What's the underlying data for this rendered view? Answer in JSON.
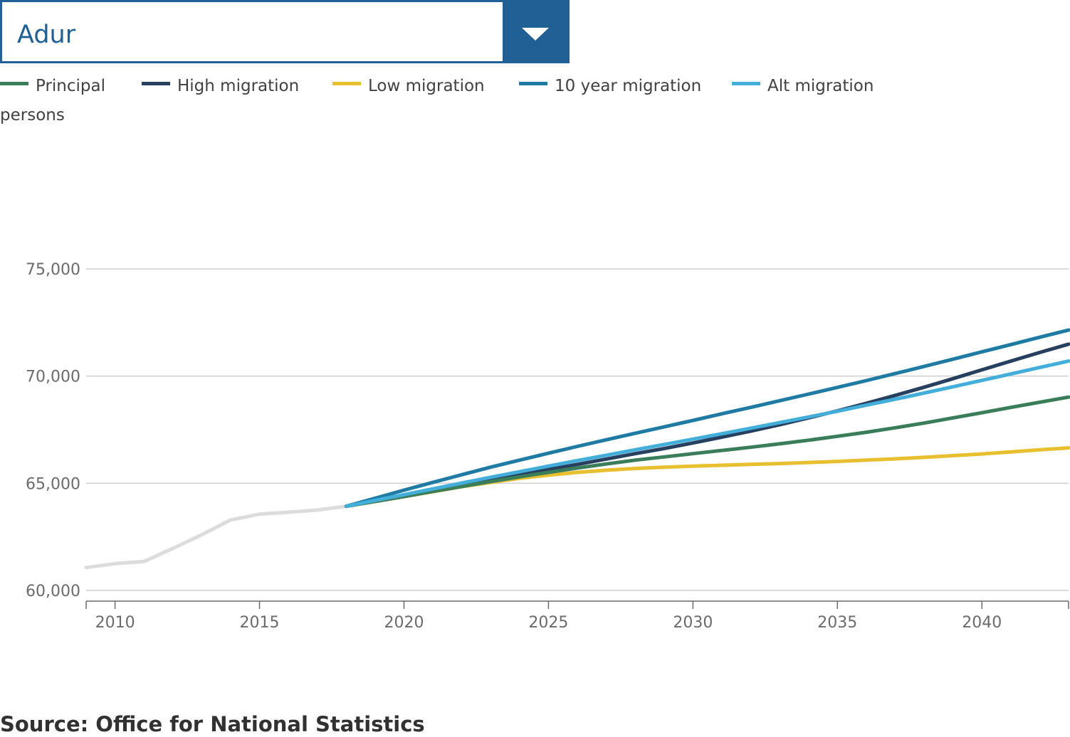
{
  "dropdown": {
    "selected": "Adur"
  },
  "legend": [
    {
      "label": "Principal",
      "color": "#3a7d5a"
    },
    {
      "label": "High migration",
      "color": "#27405f"
    },
    {
      "label": "Low migration",
      "color": "#e8bf2f"
    },
    {
      "label": "10 year migration",
      "color": "#1f7ba3"
    },
    {
      "label": "Alt migration",
      "color": "#44aedb"
    }
  ],
  "unit_label": "persons",
  "source": "Source: Office for National Statistics",
  "chart_data": {
    "type": "line",
    "ylabel": "persons",
    "xlim": [
      2009,
      2043
    ],
    "ylim": [
      60000,
      75000
    ],
    "y_ticks": [
      60000,
      65000,
      70000,
      75000
    ],
    "y_tick_labels": [
      "60,000",
      "65,000",
      "70,000",
      "75,000"
    ],
    "x_ticks": [
      2010,
      2015,
      2020,
      2025,
      2030,
      2035,
      2040
    ],
    "x_tick_labels": [
      "2010",
      "2015",
      "2020",
      "2025",
      "2030",
      "2035",
      "2040"
    ],
    "grid": true,
    "legend_position": "top-left",
    "series": [
      {
        "name": "",
        "color": "#dcdcdc",
        "x": [
          2009,
          2010,
          2011,
          2012,
          2013,
          2014,
          2015,
          2016,
          2017,
          2018
        ],
        "values": [
          61070,
          61250,
          61350,
          61960,
          62600,
          63290,
          63560,
          63650,
          63750,
          63930
        ]
      },
      {
        "name": "Principal",
        "color": "#3a7d5a",
        "x": [
          2018,
          2019,
          2020,
          2021,
          2022,
          2023,
          2024,
          2025,
          2026,
          2027,
          2028,
          2029,
          2030,
          2031,
          2032,
          2033,
          2034,
          2035,
          2036,
          2037,
          2038,
          2039,
          2040,
          2041,
          2042,
          2043
        ],
        "values": [
          63930,
          64150,
          64380,
          64620,
          64850,
          65080,
          65300,
          65510,
          65710,
          65900,
          66080,
          66230,
          66380,
          66530,
          66680,
          66840,
          67010,
          67190,
          67380,
          67590,
          67810,
          68050,
          68290,
          68540,
          68780,
          69020
        ]
      },
      {
        "name": "High migration",
        "color": "#27405f",
        "x": [
          2018,
          2019,
          2020,
          2021,
          2022,
          2023,
          2024,
          2025,
          2026,
          2027,
          2028,
          2029,
          2030,
          2031,
          2032,
          2033,
          2034,
          2035,
          2036,
          2037,
          2038,
          2039,
          2040,
          2041,
          2042,
          2043
        ],
        "values": [
          63930,
          64170,
          64420,
          64660,
          64900,
          65150,
          65390,
          65640,
          65880,
          66130,
          66380,
          66620,
          66880,
          67150,
          67430,
          67730,
          68050,
          68380,
          68730,
          69100,
          69480,
          69880,
          70290,
          70700,
          71100,
          71490
        ]
      },
      {
        "name": "Low migration",
        "color": "#e8bf2f",
        "x": [
          2018,
          2019,
          2020,
          2021,
          2022,
          2023,
          2024,
          2025,
          2026,
          2027,
          2028,
          2029,
          2030,
          2031,
          2032,
          2033,
          2034,
          2035,
          2036,
          2037,
          2038,
          2039,
          2040,
          2041,
          2042,
          2043
        ],
        "values": [
          63930,
          64150,
          64380,
          64610,
          64840,
          65040,
          65230,
          65380,
          65510,
          65610,
          65690,
          65750,
          65800,
          65840,
          65880,
          65920,
          65970,
          66020,
          66080,
          66140,
          66210,
          66290,
          66370,
          66460,
          66560,
          66650
        ]
      },
      {
        "name": "10 year migration",
        "color": "#1f7ba3",
        "x": [
          2018,
          2019,
          2020,
          2021,
          2022,
          2023,
          2024,
          2025,
          2026,
          2027,
          2028,
          2029,
          2030,
          2031,
          2032,
          2033,
          2034,
          2035,
          2036,
          2037,
          2038,
          2039,
          2040,
          2041,
          2042,
          2043
        ],
        "values": [
          63930,
          64300,
          64680,
          65040,
          65400,
          65750,
          66080,
          66400,
          66720,
          67030,
          67330,
          67630,
          67930,
          68240,
          68540,
          68850,
          69160,
          69470,
          69790,
          70120,
          70450,
          70790,
          71130,
          71470,
          71810,
          72150
        ]
      },
      {
        "name": "Alt migration",
        "color": "#44aedb",
        "x": [
          2018,
          2019,
          2020,
          2021,
          2022,
          2023,
          2024,
          2025,
          2026,
          2027,
          2028,
          2029,
          2030,
          2031,
          2032,
          2033,
          2034,
          2035,
          2036,
          2037,
          2038,
          2039,
          2040,
          2041,
          2042,
          2043
        ],
        "values": [
          63930,
          64200,
          64470,
          64740,
          65010,
          65280,
          65540,
          65800,
          66060,
          66310,
          66560,
          66810,
          67060,
          67310,
          67570,
          67830,
          68090,
          68360,
          68640,
          68920,
          69210,
          69500,
          69800,
          70100,
          70400,
          70700
        ]
      }
    ]
  }
}
